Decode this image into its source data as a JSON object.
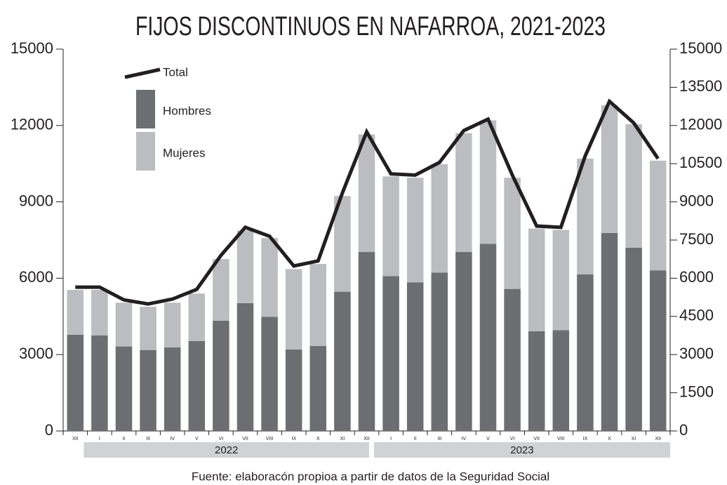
{
  "chart_data": {
    "type": "bar",
    "title": "FIJOS DISCONTINUOS EN NAFARROA, 2021-2023",
    "source": "Fuente: elaboracón propioa a partir de datos  de la Seguridad Social",
    "categories": [
      "XII",
      "I",
      "II",
      "III",
      "IV",
      "V",
      "VI",
      "VII",
      "VIII",
      "IX",
      "X",
      "XI",
      "XII",
      "I",
      "II",
      "III",
      "IV",
      "V",
      "VI",
      "VII",
      "VIII",
      "IX",
      "X",
      "XI",
      "XII"
    ],
    "year_labels": [
      "2022",
      "2023"
    ],
    "stacked": true,
    "series": [
      {
        "name": "Hombres",
        "color": "#6d6e71",
        "values": [
          3780,
          3750,
          3320,
          3180,
          3280,
          3530,
          4330,
          5020,
          4480,
          3200,
          3340,
          5470,
          7030,
          6080,
          5840,
          6220,
          7030,
          7350,
          5580,
          3920,
          3960,
          6150,
          7780,
          7200,
          6310
        ]
      },
      {
        "name": "Mujeres",
        "color": "#bcbdc0",
        "values": [
          1760,
          1790,
          1720,
          1700,
          1760,
          1870,
          2420,
          2860,
          3100,
          3160,
          3220,
          3760,
          4620,
          3920,
          4110,
          4260,
          4670,
          4850,
          4370,
          4030,
          3940,
          4550,
          5020,
          4850,
          4310
        ]
      },
      {
        "name": "Total",
        "color": "#231f20",
        "type": "line",
        "axis": "y2",
        "values": [
          5650,
          5650,
          5150,
          4990,
          5180,
          5560,
          6900,
          8000,
          7650,
          6480,
          6680,
          9350,
          11750,
          10100,
          10050,
          10550,
          11800,
          12250,
          10050,
          8050,
          8000,
          10800,
          12950,
          12100,
          10700
        ]
      }
    ],
    "ylim": [
      0,
      15000
    ],
    "yticks": [
      0,
      3000,
      6000,
      9000,
      12000,
      15000
    ],
    "y2lim": [
      0,
      15000
    ],
    "y2ticks": [
      0,
      1500,
      3000,
      4500,
      6000,
      7500,
      9000,
      10500,
      12000,
      13500,
      15000
    ]
  }
}
